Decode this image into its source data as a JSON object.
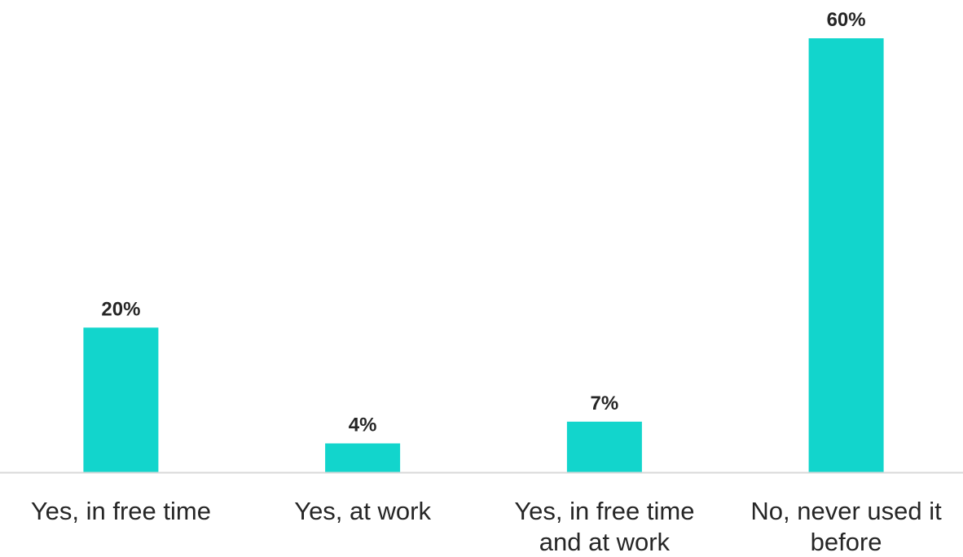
{
  "chart_data": {
    "type": "bar",
    "categories": [
      [
        "Yes, in free time"
      ],
      [
        "Yes, at work"
      ],
      [
        "Yes, in free time",
        "and at work"
      ],
      [
        "No, never used it",
        "before"
      ]
    ],
    "values": [
      20,
      4,
      7,
      60
    ],
    "data_labels": [
      "20%",
      "4%",
      "7%",
      "60%"
    ],
    "ylim": [
      0,
      60
    ],
    "grid": false,
    "legend": "none",
    "colors": {
      "bar": "#12d5cc",
      "axis": "#d9d9d9",
      "text": "#262626"
    }
  }
}
